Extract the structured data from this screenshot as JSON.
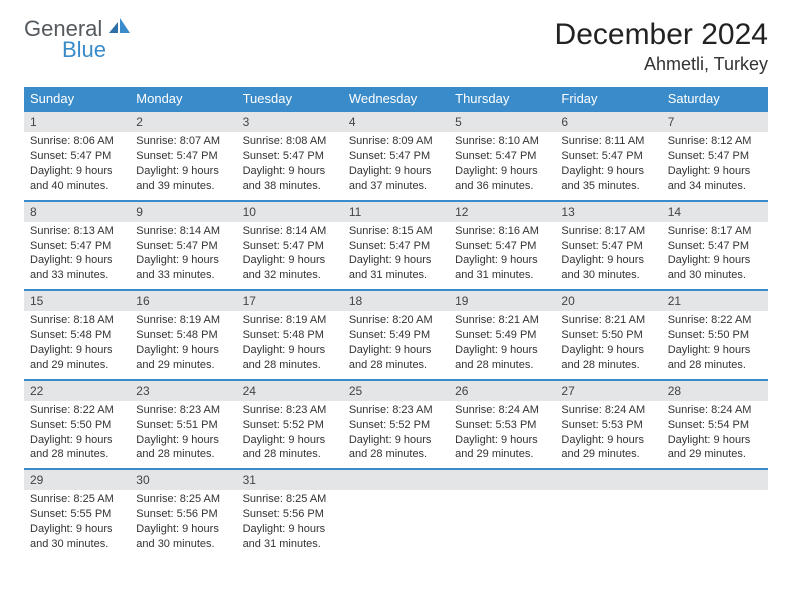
{
  "logo": {
    "word1": "General",
    "word2": "Blue"
  },
  "title": "December 2024",
  "location": "Ahmetli, Turkey",
  "colors": {
    "brand_blue": "#3a8bc9",
    "header_row_bg": "#3a8bc9",
    "header_row_text": "#ffffff",
    "daynum_bg": "#e3e5e7",
    "text": "#333333",
    "logo_gray": "#555a5f"
  },
  "weekdays": [
    "Sunday",
    "Monday",
    "Tuesday",
    "Wednesday",
    "Thursday",
    "Friday",
    "Saturday"
  ],
  "days": [
    {
      "n": "1",
      "sunrise": "8:06 AM",
      "sunset": "5:47 PM",
      "dl": "9 hours and 40 minutes."
    },
    {
      "n": "2",
      "sunrise": "8:07 AM",
      "sunset": "5:47 PM",
      "dl": "9 hours and 39 minutes."
    },
    {
      "n": "3",
      "sunrise": "8:08 AM",
      "sunset": "5:47 PM",
      "dl": "9 hours and 38 minutes."
    },
    {
      "n": "4",
      "sunrise": "8:09 AM",
      "sunset": "5:47 PM",
      "dl": "9 hours and 37 minutes."
    },
    {
      "n": "5",
      "sunrise": "8:10 AM",
      "sunset": "5:47 PM",
      "dl": "9 hours and 36 minutes."
    },
    {
      "n": "6",
      "sunrise": "8:11 AM",
      "sunset": "5:47 PM",
      "dl": "9 hours and 35 minutes."
    },
    {
      "n": "7",
      "sunrise": "8:12 AM",
      "sunset": "5:47 PM",
      "dl": "9 hours and 34 minutes."
    },
    {
      "n": "8",
      "sunrise": "8:13 AM",
      "sunset": "5:47 PM",
      "dl": "9 hours and 33 minutes."
    },
    {
      "n": "9",
      "sunrise": "8:14 AM",
      "sunset": "5:47 PM",
      "dl": "9 hours and 33 minutes."
    },
    {
      "n": "10",
      "sunrise": "8:14 AM",
      "sunset": "5:47 PM",
      "dl": "9 hours and 32 minutes."
    },
    {
      "n": "11",
      "sunrise": "8:15 AM",
      "sunset": "5:47 PM",
      "dl": "9 hours and 31 minutes."
    },
    {
      "n": "12",
      "sunrise": "8:16 AM",
      "sunset": "5:47 PM",
      "dl": "9 hours and 31 minutes."
    },
    {
      "n": "13",
      "sunrise": "8:17 AM",
      "sunset": "5:47 PM",
      "dl": "9 hours and 30 minutes."
    },
    {
      "n": "14",
      "sunrise": "8:17 AM",
      "sunset": "5:47 PM",
      "dl": "9 hours and 30 minutes."
    },
    {
      "n": "15",
      "sunrise": "8:18 AM",
      "sunset": "5:48 PM",
      "dl": "9 hours and 29 minutes."
    },
    {
      "n": "16",
      "sunrise": "8:19 AM",
      "sunset": "5:48 PM",
      "dl": "9 hours and 29 minutes."
    },
    {
      "n": "17",
      "sunrise": "8:19 AM",
      "sunset": "5:48 PM",
      "dl": "9 hours and 28 minutes."
    },
    {
      "n": "18",
      "sunrise": "8:20 AM",
      "sunset": "5:49 PM",
      "dl": "9 hours and 28 minutes."
    },
    {
      "n": "19",
      "sunrise": "8:21 AM",
      "sunset": "5:49 PM",
      "dl": "9 hours and 28 minutes."
    },
    {
      "n": "20",
      "sunrise": "8:21 AM",
      "sunset": "5:50 PM",
      "dl": "9 hours and 28 minutes."
    },
    {
      "n": "21",
      "sunrise": "8:22 AM",
      "sunset": "5:50 PM",
      "dl": "9 hours and 28 minutes."
    },
    {
      "n": "22",
      "sunrise": "8:22 AM",
      "sunset": "5:50 PM",
      "dl": "9 hours and 28 minutes."
    },
    {
      "n": "23",
      "sunrise": "8:23 AM",
      "sunset": "5:51 PM",
      "dl": "9 hours and 28 minutes."
    },
    {
      "n": "24",
      "sunrise": "8:23 AM",
      "sunset": "5:52 PM",
      "dl": "9 hours and 28 minutes."
    },
    {
      "n": "25",
      "sunrise": "8:23 AM",
      "sunset": "5:52 PM",
      "dl": "9 hours and 28 minutes."
    },
    {
      "n": "26",
      "sunrise": "8:24 AM",
      "sunset": "5:53 PM",
      "dl": "9 hours and 29 minutes."
    },
    {
      "n": "27",
      "sunrise": "8:24 AM",
      "sunset": "5:53 PM",
      "dl": "9 hours and 29 minutes."
    },
    {
      "n": "28",
      "sunrise": "8:24 AM",
      "sunset": "5:54 PM",
      "dl": "9 hours and 29 minutes."
    },
    {
      "n": "29",
      "sunrise": "8:25 AM",
      "sunset": "5:55 PM",
      "dl": "9 hours and 30 minutes."
    },
    {
      "n": "30",
      "sunrise": "8:25 AM",
      "sunset": "5:56 PM",
      "dl": "9 hours and 30 minutes."
    },
    {
      "n": "31",
      "sunrise": "8:25 AM",
      "sunset": "5:56 PM",
      "dl": "9 hours and 31 minutes."
    }
  ],
  "labels": {
    "sunrise": "Sunrise:",
    "sunset": "Sunset:",
    "daylight": "Daylight:"
  },
  "layout": {
    "start_weekday": 0,
    "rows": 5,
    "cols": 7,
    "cell_font_size": 11
  }
}
